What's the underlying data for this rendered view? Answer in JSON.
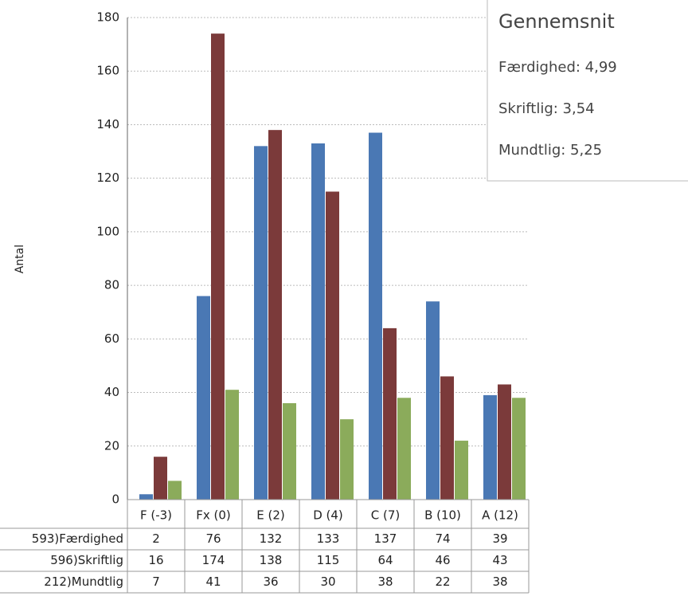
{
  "chart_data": {
    "type": "bar",
    "y_label": "Antal",
    "categories": [
      "F (-3)",
      "Fx (0)",
      "E (2)",
      "D (4)",
      "C (7)",
      "B (10)",
      "A (12)"
    ],
    "series": [
      {
        "name": "593)Færdighed",
        "color": "#4a78b4",
        "values": [
          2,
          76,
          132,
          133,
          137,
          74,
          39
        ]
      },
      {
        "name": "596)Skriftlig",
        "color": "#7b3a3a",
        "values": [
          16,
          174,
          138,
          115,
          64,
          46,
          43
        ]
      },
      {
        "name": "212)Mundtlig",
        "color": "#8bab5b",
        "values": [
          7,
          41,
          36,
          30,
          38,
          22,
          38
        ]
      }
    ],
    "ylim": [
      0,
      180
    ],
    "yticks": [
      0,
      20,
      40,
      60,
      80,
      100,
      120,
      140,
      160,
      180
    ],
    "grid": true,
    "tooltip": {
      "title": "Gennemsnit",
      "items": [
        "Færdighed: 4,99",
        "Skriftlig: 3,54",
        "Mundtlig: 5,25"
      ]
    }
  }
}
